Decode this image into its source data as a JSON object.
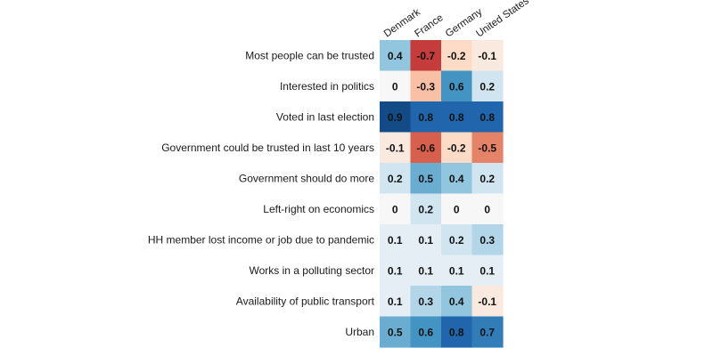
{
  "chart_data": {
    "type": "heatmap",
    "title": "",
    "xlabel": "",
    "ylabel": "",
    "columns": [
      "Denmark",
      "France",
      "Germany",
      "United States"
    ],
    "rows": [
      "Most people can be trusted",
      "Interested in politics",
      "Voted in last election",
      "Government could be trusted in last 10 years",
      "Government should do more",
      "Left-right on economics",
      "HH member lost income or job due to pandemic",
      "Works in a polluting sector",
      "Availability of public transport",
      "Urban"
    ],
    "values": [
      [
        0.4,
        -0.7,
        -0.2,
        -0.1
      ],
      [
        0,
        -0.3,
        0.6,
        0.2
      ],
      [
        0.9,
        0.8,
        0.8,
        0.8
      ],
      [
        -0.1,
        -0.6,
        -0.2,
        -0.5
      ],
      [
        0.2,
        0.5,
        0.4,
        0.2
      ],
      [
        0,
        0.2,
        0,
        0
      ],
      [
        0.1,
        0.1,
        0.2,
        0.3
      ],
      [
        0.1,
        0.1,
        0.1,
        0.1
      ],
      [
        0.1,
        0.3,
        0.4,
        -0.1
      ],
      [
        0.5,
        0.6,
        0.8,
        0.7
      ]
    ],
    "color_scale": {
      "name": "RdBu",
      "range": [
        -1,
        1
      ],
      "negative_color": "#b2182b",
      "neutral_color": "#f7f7f7",
      "positive_color": "#053061"
    },
    "legend": "none",
    "grid": false
  }
}
